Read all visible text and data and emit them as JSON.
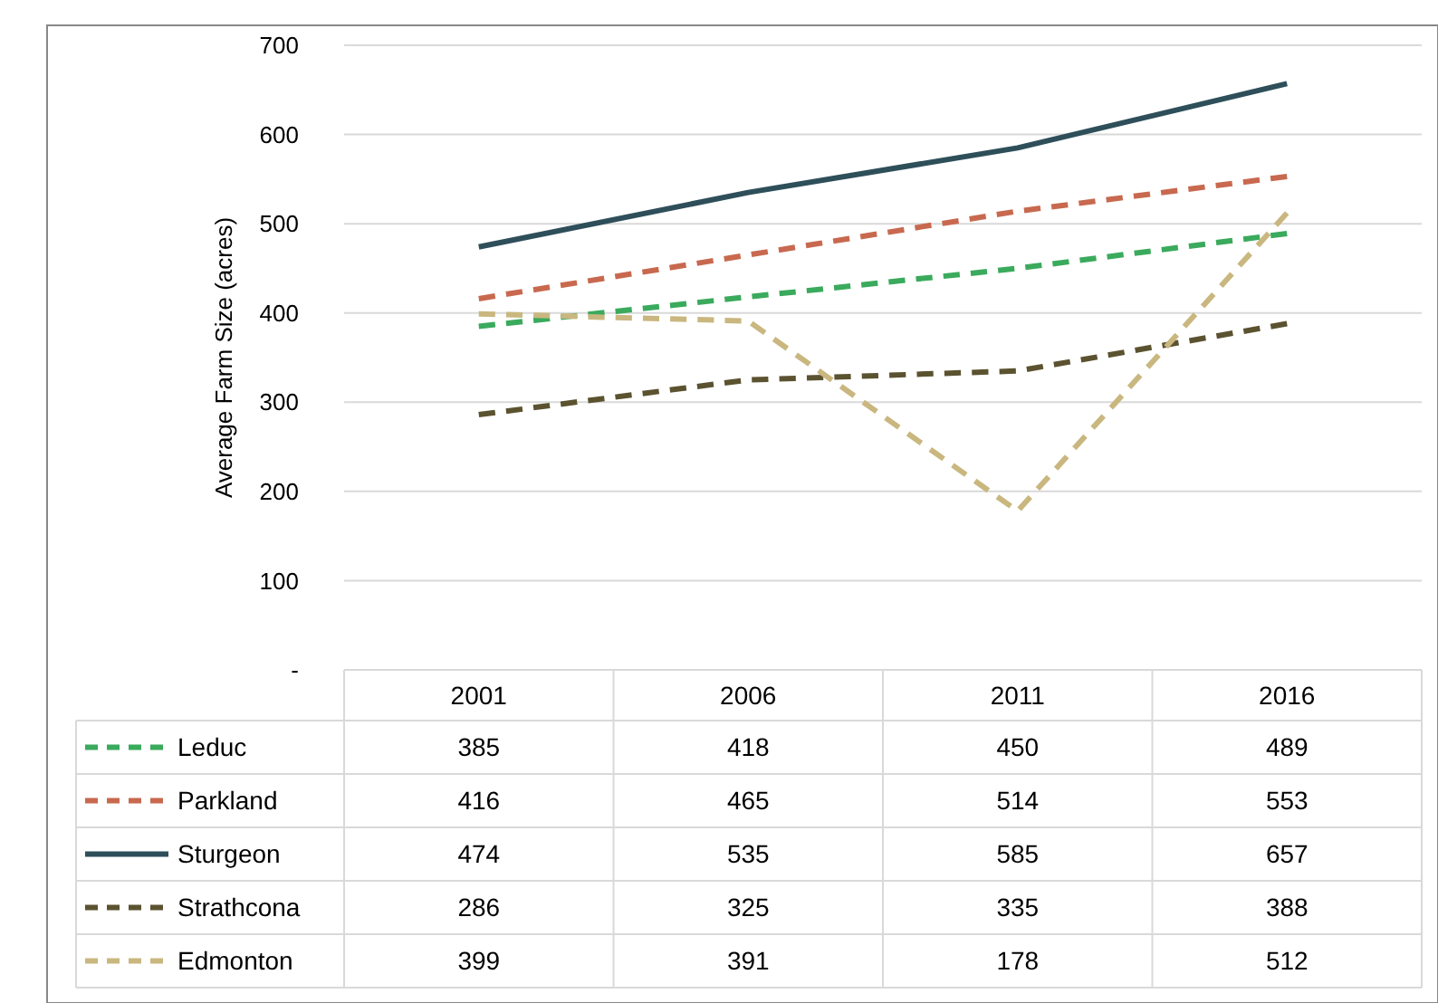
{
  "chart_data": {
    "type": "line",
    "ylabel": "Average Farm Size (acres)",
    "categories": [
      "2001",
      "2006",
      "2011",
      "2016"
    ],
    "series": [
      {
        "name": "Leduc",
        "color": "#3aaa5c",
        "line_style": "dashed",
        "values": [
          385,
          418,
          450,
          489
        ]
      },
      {
        "name": "Parkland",
        "color": "#c8694f",
        "line_style": "dashed",
        "values": [
          416,
          465,
          514,
          553
        ]
      },
      {
        "name": "Sturgeon",
        "color": "#2e4f5a",
        "line_style": "solid",
        "values": [
          474,
          535,
          585,
          657
        ]
      },
      {
        "name": "Strathcona",
        "color": "#5b5230",
        "line_style": "dashed",
        "values": [
          286,
          325,
          335,
          388
        ]
      },
      {
        "name": "Edmonton",
        "color": "#c9b77f",
        "line_style": "dashed",
        "values": [
          399,
          391,
          178,
          512
        ]
      }
    ],
    "ylim": [
      0,
      700
    ],
    "yticks": [
      {
        "value": 0,
        "label": "-"
      },
      100,
      200,
      300,
      400,
      500,
      600,
      700
    ],
    "grid": "y",
    "legend": "bottom",
    "data_labels": true,
    "marker": "none"
  }
}
